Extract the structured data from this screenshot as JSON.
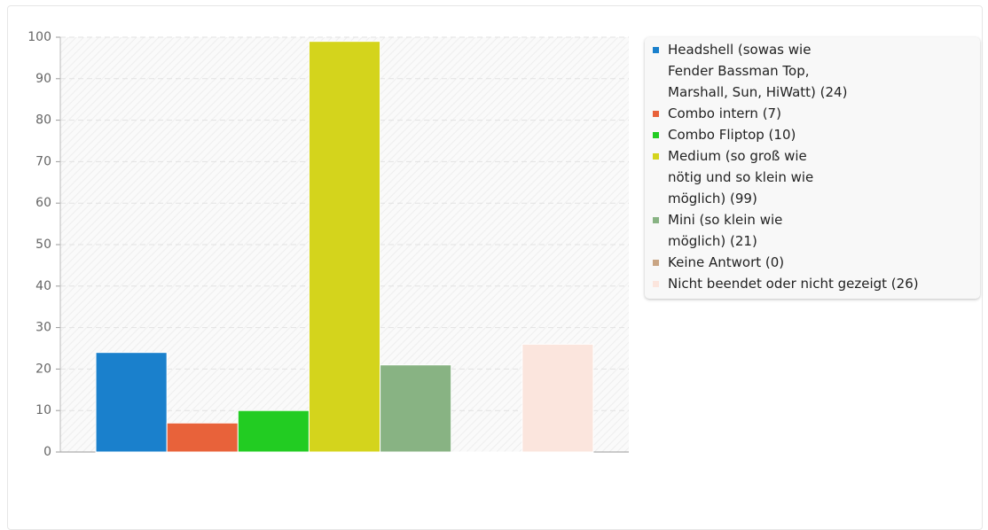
{
  "chart_data": {
    "type": "bar",
    "categories": [
      null
    ],
    "series": [
      {
        "name": "Headshell (sowas wie\nFender Bassman Top,\nMarshall, Sun, HiWatt) (24)",
        "color": "#1a80cc",
        "values": [
          24
        ]
      },
      {
        "name": "Combo intern (7)",
        "color": "#e8623a",
        "values": [
          7
        ]
      },
      {
        "name": "Combo Fliptop (10)",
        "color": "#22cc22",
        "values": [
          10
        ]
      },
      {
        "name": "Medium (so groß wie\nnötig und so klein wie\nmöglich) (99)",
        "color": "#d4d41c",
        "values": [
          99
        ]
      },
      {
        "name": "Mini (so klein wie\nmöglich) (21)",
        "color": "#88b383",
        "values": [
          21
        ]
      },
      {
        "name": "Keine Antwort (0)",
        "color": "#c9a584",
        "values": [
          0
        ]
      },
      {
        "name": "Nicht beendet oder nicht gezeigt (26)",
        "color": "#fbe5dd",
        "values": [
          26
        ]
      }
    ],
    "ylim": [
      0,
      100
    ],
    "yticks": [
      0,
      10,
      20,
      30,
      40,
      50,
      60,
      70,
      80,
      90,
      100
    ],
    "grid": true,
    "legend": "right"
  }
}
